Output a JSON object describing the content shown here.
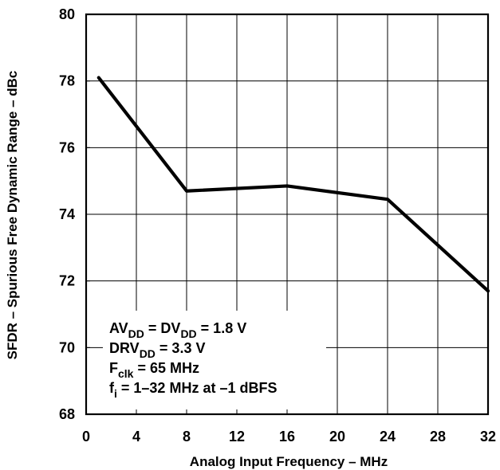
{
  "chart_data": {
    "type": "line",
    "title": "",
    "xlabel": "Analog Input Frequency – MHz",
    "ylabel": "SFDR – Spurious Free Dynamic Range – dBc",
    "xlim": [
      0,
      32
    ],
    "ylim": [
      68,
      80
    ],
    "x_ticks": [
      0,
      4,
      8,
      12,
      16,
      20,
      24,
      28,
      32
    ],
    "y_ticks": [
      68,
      70,
      72,
      74,
      76,
      78,
      80
    ],
    "grid": true,
    "legend": "",
    "series": [
      {
        "x": [
          1,
          8,
          16,
          24,
          32
        ],
        "y": [
          78.1,
          74.7,
          74.85,
          74.45,
          71.7
        ],
        "color": "#000000"
      }
    ],
    "annotations": {
      "line_1": {
        "prefix_1": "AV",
        "sub_1": "DD",
        "middle": " = DV",
        "sub_2": "DD",
        "suffix": " = 1.8 V"
      },
      "line_2": {
        "prefix": "DRV",
        "sub": "DD",
        "suffix": " = 3.3 V"
      },
      "line_3": {
        "prefix": "F",
        "sub": "clk",
        "suffix": " = 65 MHz"
      },
      "line_4": {
        "prefix": "f",
        "sub": "i",
        "suffix": " = 1–32 MHz at –1 dBFS"
      }
    }
  }
}
